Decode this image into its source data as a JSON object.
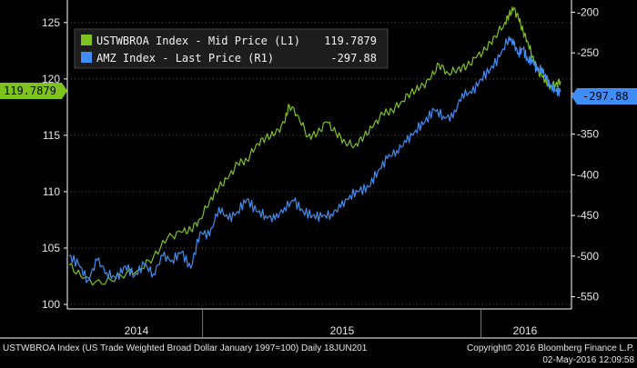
{
  "chart_data": {
    "type": "line",
    "left_axis": {
      "ticks": [
        100,
        105,
        110,
        115,
        120,
        125
      ],
      "range": [
        99.6,
        127.0
      ]
    },
    "right_axis": {
      "ticks": [
        -200,
        -250,
        -300,
        -350,
        -400,
        -450,
        -500,
        -550
      ],
      "range": [
        -565,
        -185
      ]
    },
    "x_labels": [
      "2014",
      "2015",
      "2016"
    ],
    "series": [
      {
        "name": "USTWBROA Index - Mid Price (L1)",
        "legend_value": "119.7879",
        "last_badge": "119.7879",
        "color": "#7ec21f",
        "axis": "left",
        "points": [
          [
            0,
            103.5
          ],
          [
            3,
            102.3
          ],
          [
            7,
            101.8
          ],
          [
            11,
            102.6
          ],
          [
            15,
            103.1
          ],
          [
            18,
            104.2
          ],
          [
            21,
            105.9
          ],
          [
            24,
            106.4
          ],
          [
            26,
            106.6
          ],
          [
            28,
            107.6
          ],
          [
            30,
            109.2
          ],
          [
            32,
            110.4
          ],
          [
            34,
            111.2
          ],
          [
            36,
            112.5
          ],
          [
            38,
            112.8
          ],
          [
            40,
            114.2
          ],
          [
            42,
            114.8
          ],
          [
            44,
            115.1
          ],
          [
            46,
            116.1
          ],
          [
            47,
            117.7
          ],
          [
            49,
            116.7
          ],
          [
            51,
            114.9
          ],
          [
            53,
            115.1
          ],
          [
            55,
            116.2
          ],
          [
            57,
            115.2
          ],
          [
            59,
            114.4
          ],
          [
            61,
            114.1
          ],
          [
            63,
            114.9
          ],
          [
            65,
            115.8
          ],
          [
            67,
            116.9
          ],
          [
            69,
            117.2
          ],
          [
            71,
            118.0
          ],
          [
            73,
            118.8
          ],
          [
            75,
            119.2
          ],
          [
            77,
            119.9
          ],
          [
            79,
            121.3
          ],
          [
            81,
            120.5
          ],
          [
            83,
            120.9
          ],
          [
            85,
            121.1
          ],
          [
            87,
            121.9
          ],
          [
            89,
            122.6
          ],
          [
            91,
            123.8
          ],
          [
            93,
            124.9
          ],
          [
            94,
            125.7
          ],
          [
            95,
            126.2
          ],
          [
            96,
            125.4
          ],
          [
            97,
            124.2
          ],
          [
            98,
            123.3
          ],
          [
            99,
            122.0
          ],
          [
            100,
            120.8
          ],
          [
            101,
            120.2
          ],
          [
            102,
            119.7
          ],
          [
            103,
            119.3
          ],
          [
            104,
            119.6
          ],
          [
            105,
            119.7879
          ]
        ]
      },
      {
        "name": "AMZ Index - Last Price (R1)",
        "legend_value": "-297.88",
        "last_badge": "-297.88",
        "color": "#3f8df5",
        "axis": "right",
        "points": [
          [
            0,
            -500
          ],
          [
            2,
            -510
          ],
          [
            4,
            -530
          ],
          [
            6,
            -505
          ],
          [
            8,
            -520
          ],
          [
            10,
            -528
          ],
          [
            12,
            -512
          ],
          [
            14,
            -524
          ],
          [
            16,
            -510
          ],
          [
            18,
            -522
          ],
          [
            20,
            -500
          ],
          [
            22,
            -505
          ],
          [
            24,
            -495
          ],
          [
            26,
            -515
          ],
          [
            28,
            -470
          ],
          [
            30,
            -475
          ],
          [
            32,
            -440
          ],
          [
            34,
            -455
          ],
          [
            36,
            -445
          ],
          [
            38,
            -430
          ],
          [
            40,
            -445
          ],
          [
            42,
            -450
          ],
          [
            44,
            -455
          ],
          [
            46,
            -440
          ],
          [
            48,
            -432
          ],
          [
            50,
            -445
          ],
          [
            52,
            -450
          ],
          [
            54,
            -452
          ],
          [
            56,
            -448
          ],
          [
            58,
            -440
          ],
          [
            60,
            -425
          ],
          [
            62,
            -420
          ],
          [
            64,
            -415
          ],
          [
            66,
            -395
          ],
          [
            68,
            -380
          ],
          [
            70,
            -370
          ],
          [
            72,
            -360
          ],
          [
            74,
            -345
          ],
          [
            76,
            -335
          ],
          [
            78,
            -320
          ],
          [
            80,
            -328
          ],
          [
            82,
            -330
          ],
          [
            84,
            -300
          ],
          [
            86,
            -300
          ],
          [
            88,
            -282
          ],
          [
            90,
            -270
          ],
          [
            92,
            -255
          ],
          [
            94,
            -230
          ],
          [
            95,
            -240
          ],
          [
            96,
            -250
          ],
          [
            97,
            -245
          ],
          [
            98,
            -260
          ],
          [
            99,
            -258
          ],
          [
            100,
            -272
          ],
          [
            101,
            -268
          ],
          [
            102,
            -283
          ],
          [
            103,
            -290
          ],
          [
            104,
            -297
          ],
          [
            105,
            -297.88
          ]
        ]
      }
    ]
  },
  "footer": {
    "left": "USTWBROA Index (US Trade Weighted Broad Dollar January 1997=100)  Daily 18JUN201",
    "copyright": "Copyright© 2016 Bloomberg Finance L.P.",
    "timestamp": "02-May-2016 12:09:58"
  }
}
